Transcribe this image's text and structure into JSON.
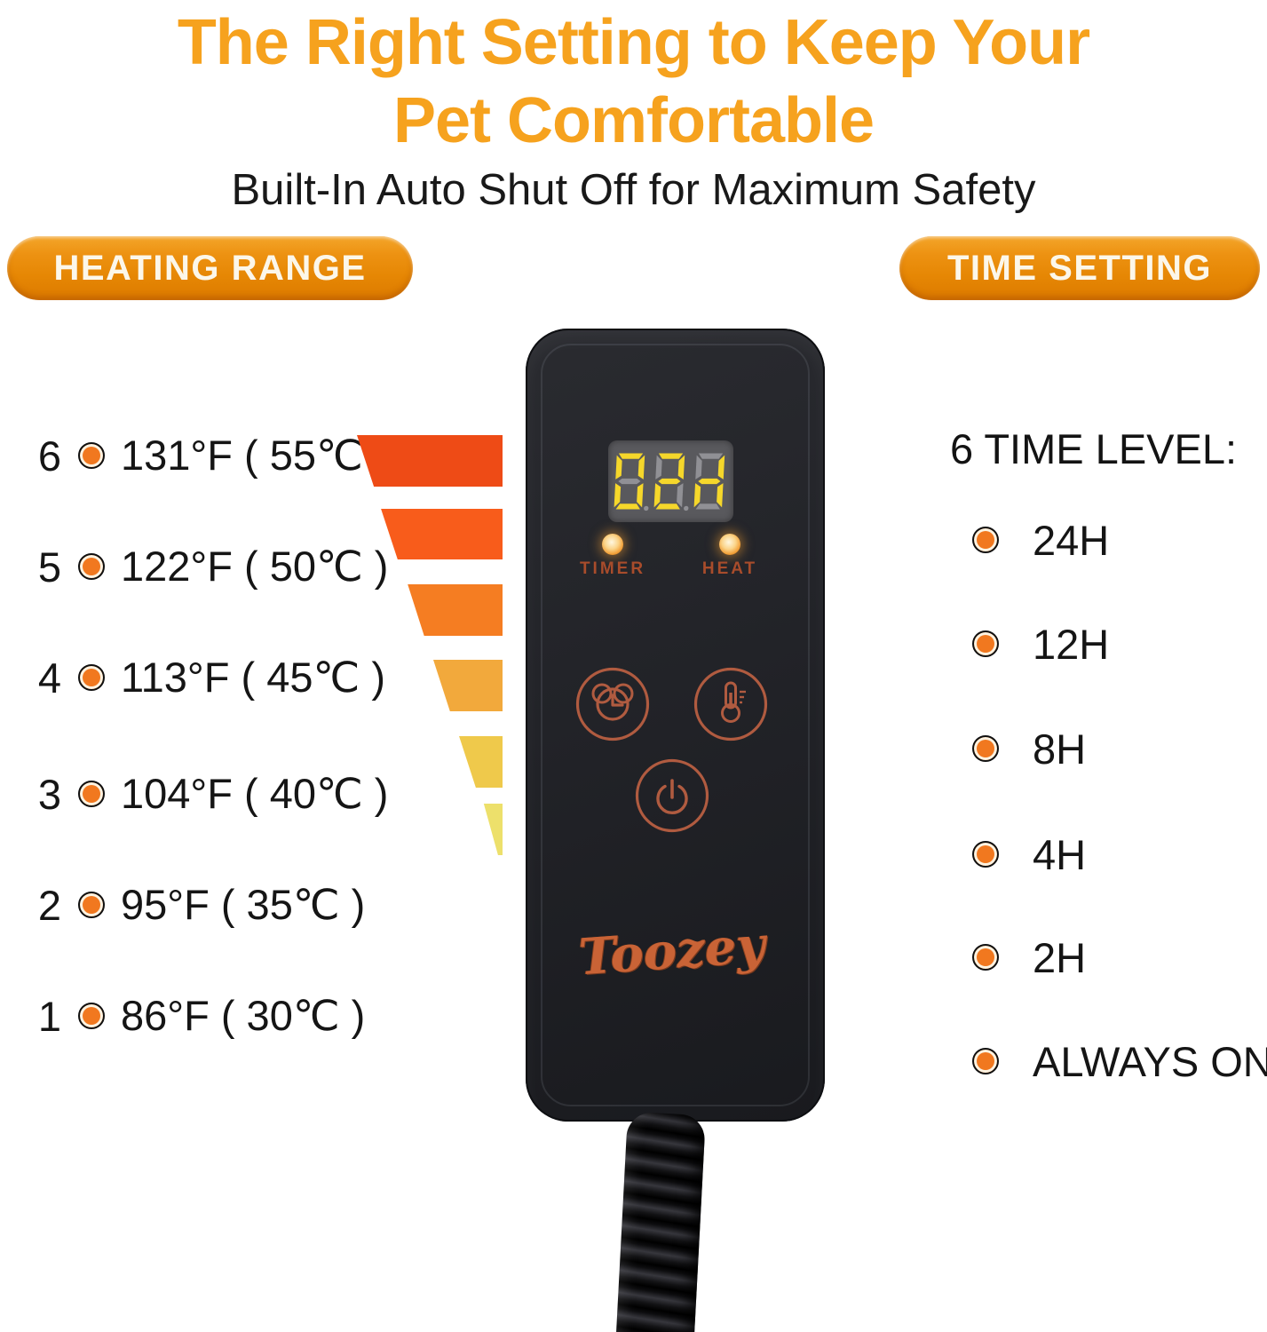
{
  "page": {
    "title_line1": "The Right Setting to Keep Your",
    "title_line2": "Pet Comfortable",
    "subtitle": "Built-In Auto Shut Off for Maximum Safety"
  },
  "badges": {
    "heating_range": "HEATING RANGE",
    "time_setting": "TIME SETTING"
  },
  "heating": {
    "levels": [
      {
        "level": "6",
        "text": "131°F ( 55℃ )"
      },
      {
        "level": "5",
        "text": "122°F ( 50℃ )"
      },
      {
        "level": "4",
        "text": "113°F ( 45℃ )"
      },
      {
        "level": "3",
        "text": "104°F ( 40℃ )"
      },
      {
        "level": "2",
        "text": "95°F ( 35℃ )"
      },
      {
        "level": "1",
        "text": "86°F ( 30℃ )"
      }
    ],
    "bullet_color": "#F1781F"
  },
  "funnel": {
    "colors": [
      "#EE4B16",
      "#F85C1B",
      "#F57D22",
      "#F2A93C",
      "#EFC94B",
      "#EDE06B"
    ]
  },
  "controller": {
    "display": {
      "value": "02H",
      "chars": [
        {
          "char": "0",
          "segments": "abcdef",
          "dp": true
        },
        {
          "char": "2",
          "segments": "abdeg",
          "dp": true
        },
        {
          "char": "H",
          "segments": "bceg",
          "dp": false
        }
      ],
      "lit_color": "#F5D72B",
      "unlit_color": "#909095",
      "background": "#59595D"
    },
    "leds": [
      {
        "label": "TIMER"
      },
      {
        "label": "HEAT"
      }
    ],
    "buttons": [
      {
        "name": "timer-button",
        "icon": "alarm-clock-icon"
      },
      {
        "name": "temperature-button",
        "icon": "thermometer-icon"
      },
      {
        "name": "power-button",
        "icon": "power-icon"
      }
    ],
    "accent_color": "#B05B40",
    "brand": "Toozey"
  },
  "time_setting": {
    "heading": "6 TIME LEVEL:",
    "options": [
      "24H",
      "12H",
      "8H",
      "4H",
      "2H",
      "ALWAYS ON"
    ]
  },
  "colors": {
    "title_orange": "#F6A21E",
    "badge_orange": "#E68704",
    "led_glow": "#F19C33"
  }
}
